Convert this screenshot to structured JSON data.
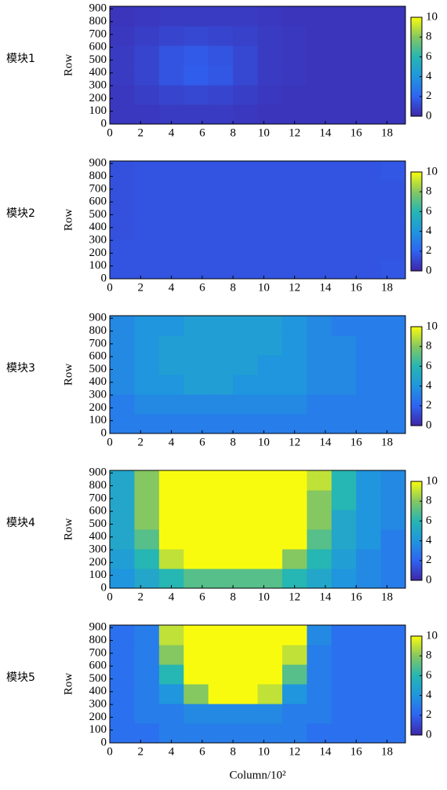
{
  "chart_data": [
    {
      "type": "heatmap",
      "panel_label": "模块1",
      "ylabel": "Row",
      "xlim": [
        0,
        19.2
      ],
      "ylim": [
        0,
        920
      ],
      "xticks": [
        0,
        2,
        4,
        6,
        8,
        10,
        12,
        14,
        16,
        18
      ],
      "yticks": [
        0,
        100,
        200,
        300,
        400,
        500,
        600,
        700,
        800,
        900
      ],
      "clim": [
        0,
        10
      ],
      "colorbar_ticks": [
        0,
        2,
        4,
        6,
        8,
        10
      ],
      "colors": [
        "#3e26a8",
        "#2f63f3",
        "#1f96de",
        "#26b6b3",
        "#85c761",
        "#f9fb0e"
      ],
      "x": [
        0.8,
        2.4,
        4,
        5.6,
        7.2,
        8.8,
        10.4,
        12,
        13.6,
        15.2,
        16.8,
        18.4
      ],
      "y": [
        77,
        230,
        383,
        537,
        690,
        843
      ],
      "z": [
        [
          0.6,
          0.6,
          0.7,
          0.7,
          0.7,
          0.6,
          0.5,
          0.5,
          0.5,
          0.5,
          0.5,
          0.5
        ],
        [
          0.6,
          0.8,
          1,
          1.1,
          1,
          0.8,
          0.6,
          0.5,
          0.5,
          0.5,
          0.5,
          0.5
        ],
        [
          0.7,
          1,
          1.5,
          1.8,
          1.6,
          1.1,
          0.7,
          0.6,
          0.5,
          0.5,
          0.5,
          0.5
        ],
        [
          0.7,
          1,
          1.5,
          1.7,
          1.5,
          1.1,
          0.7,
          0.6,
          0.5,
          0.5,
          0.5,
          0.5
        ],
        [
          0.6,
          0.8,
          1,
          1.1,
          1,
          0.9,
          0.7,
          0.6,
          0.5,
          0.5,
          0.5,
          0.5
        ],
        [
          0.5,
          0.6,
          0.7,
          0.7,
          0.7,
          0.7,
          0.6,
          0.5,
          0.5,
          0.5,
          0.5,
          0.5
        ]
      ]
    },
    {
      "type": "heatmap",
      "panel_label": "模块2",
      "ylabel": "Row",
      "xlim": [
        0,
        19.2
      ],
      "ylim": [
        0,
        920
      ],
      "xticks": [
        0,
        2,
        4,
        6,
        8,
        10,
        12,
        14,
        16,
        18
      ],
      "yticks": [
        0,
        100,
        200,
        300,
        400,
        500,
        600,
        700,
        800,
        900
      ],
      "clim": [
        0,
        10
      ],
      "colorbar_ticks": [
        0,
        2,
        4,
        6,
        8,
        10
      ],
      "colors": [
        "#3e26a8",
        "#2f63f3",
        "#1f96de",
        "#26b6b3",
        "#85c761",
        "#f9fb0e"
      ],
      "x": [
        0.8,
        2.4,
        4,
        5.6,
        7.2,
        8.8,
        10.4,
        12,
        13.6,
        15.2,
        16.8,
        18.4
      ],
      "y": [
        77,
        230,
        383,
        537,
        690,
        843
      ],
      "z": [
        [
          1.5,
          1.5,
          1.5,
          1.5,
          1.5,
          1.5,
          1.5,
          1.5,
          1.5,
          1.5,
          1.5,
          1.6
        ],
        [
          1.5,
          1.5,
          1.5,
          1.5,
          1.5,
          1.5,
          1.5,
          1.5,
          1.5,
          1.5,
          1.5,
          1.5
        ],
        [
          1.4,
          1.5,
          1.5,
          1.5,
          1.5,
          1.5,
          1.5,
          1.5,
          1.5,
          1.5,
          1.5,
          1.5
        ],
        [
          1.4,
          1.5,
          1.5,
          1.5,
          1.5,
          1.5,
          1.5,
          1.5,
          1.5,
          1.5,
          1.5,
          1.5
        ],
        [
          1.4,
          1.5,
          1.5,
          1.5,
          1.5,
          1.5,
          1.5,
          1.5,
          1.5,
          1.5,
          1.5,
          1.5
        ],
        [
          1.4,
          1.5,
          1.5,
          1.5,
          1.5,
          1.5,
          1.5,
          1.5,
          1.5,
          1.5,
          1.5,
          1.6
        ]
      ]
    },
    {
      "type": "heatmap",
      "panel_label": "模块3",
      "ylabel": "Row",
      "xlim": [
        0,
        19.2
      ],
      "ylim": [
        0,
        920
      ],
      "xticks": [
        0,
        2,
        4,
        6,
        8,
        10,
        12,
        14,
        16,
        18
      ],
      "yticks": [
        0,
        100,
        200,
        300,
        400,
        500,
        600,
        700,
        800,
        900
      ],
      "clim": [
        0,
        10
      ],
      "colorbar_ticks": [
        0,
        2,
        4,
        6,
        8,
        10
      ],
      "colors": [
        "#3e26a8",
        "#2f63f3",
        "#1f96de",
        "#26b6b3",
        "#85c761",
        "#f9fb0e"
      ],
      "x": [
        0.8,
        2.4,
        4,
        5.6,
        7.2,
        8.8,
        10.4,
        12,
        13.6,
        15.2,
        16.8,
        18.4
      ],
      "y": [
        77,
        230,
        383,
        537,
        690,
        843
      ],
      "z": [
        [
          3,
          3,
          3,
          3,
          3,
          3,
          3,
          3,
          3,
          3,
          3,
          3
        ],
        [
          3,
          3.5,
          3.5,
          3.5,
          3.5,
          3.5,
          3.5,
          3.5,
          3,
          3,
          3,
          3
        ],
        [
          3.5,
          4,
          4,
          4.5,
          4.5,
          4,
          4,
          4,
          3.5,
          3.5,
          3,
          3
        ],
        [
          3.5,
          4,
          4.5,
          4.5,
          4.5,
          4.5,
          4,
          4,
          3.5,
          3.5,
          3,
          3
        ],
        [
          3.5,
          4,
          4.5,
          4.5,
          4.5,
          4.5,
          4.5,
          4,
          3.5,
          3.5,
          3,
          3
        ],
        [
          3.5,
          4,
          4,
          4.5,
          4.5,
          4.5,
          4.5,
          4,
          3.5,
          3,
          3,
          3
        ]
      ]
    },
    {
      "type": "heatmap",
      "panel_label": "模块4",
      "ylabel": "Row",
      "xlim": [
        0,
        19.2
      ],
      "ylim": [
        0,
        920
      ],
      "xticks": [
        0,
        2,
        4,
        6,
        8,
        10,
        12,
        14,
        16,
        18
      ],
      "yticks": [
        0,
        100,
        200,
        300,
        400,
        500,
        600,
        700,
        800,
        900
      ],
      "clim": [
        0,
        10
      ],
      "colorbar_ticks": [
        0,
        2,
        4,
        6,
        8,
        10
      ],
      "colors": [
        "#3e26a8",
        "#2f63f3",
        "#1f96de",
        "#26b6b3",
        "#85c761",
        "#f9fb0e"
      ],
      "x": [
        0.8,
        2.4,
        4,
        5.6,
        7.2,
        8.8,
        10.4,
        12,
        13.6,
        15.2,
        16.8,
        18.4
      ],
      "y": [
        77,
        230,
        383,
        537,
        690,
        843
      ],
      "z": [
        [
          4,
          5,
          6,
          7,
          7,
          7,
          7,
          6,
          5,
          4,
          3.5,
          3
        ],
        [
          4.5,
          6,
          9,
          10,
          10,
          10,
          10,
          8,
          6,
          4.5,
          3.5,
          3
        ],
        [
          5,
          7,
          10,
          10,
          10,
          10,
          10,
          10,
          7,
          5,
          4,
          3
        ],
        [
          5,
          8,
          10,
          10,
          10,
          10,
          10,
          10,
          8,
          5,
          4,
          3.5
        ],
        [
          5,
          8,
          10,
          10,
          10,
          10,
          10,
          10,
          8,
          6,
          4,
          3.5
        ],
        [
          5,
          8,
          10,
          10,
          10,
          10,
          10,
          10,
          9,
          6,
          4,
          3.5
        ]
      ]
    },
    {
      "type": "heatmap",
      "panel_label": "模块5",
      "ylabel": "Row",
      "xlabel": "Column/10²",
      "xlim": [
        0,
        19.2
      ],
      "ylim": [
        0,
        920
      ],
      "xticks": [
        0,
        2,
        4,
        6,
        8,
        10,
        12,
        14,
        16,
        18
      ],
      "yticks": [
        0,
        100,
        200,
        300,
        400,
        500,
        600,
        700,
        800,
        900
      ],
      "clim": [
        0,
        10
      ],
      "colorbar_ticks": [
        0,
        2,
        4,
        6,
        8,
        10
      ],
      "colors": [
        "#3e26a8",
        "#2f63f3",
        "#1f96de",
        "#26b6b3",
        "#85c761",
        "#f9fb0e"
      ],
      "x": [
        0.8,
        2.4,
        4,
        5.6,
        7.2,
        8.8,
        10.4,
        12,
        13.6,
        15.2,
        16.8,
        18.4
      ],
      "y": [
        77,
        230,
        383,
        537,
        690,
        843
      ],
      "z": [
        [
          2.5,
          2.5,
          3,
          3,
          3,
          3,
          3,
          3,
          2.5,
          2.5,
          2.5,
          2.5
        ],
        [
          2.5,
          3,
          3,
          3.5,
          3.5,
          3.5,
          3.5,
          3,
          3,
          2.5,
          2.5,
          2.5
        ],
        [
          2.5,
          3,
          4,
          8,
          10,
          10,
          9,
          4,
          3,
          2.5,
          2.5,
          2.5
        ],
        [
          2.5,
          3,
          6,
          10,
          10,
          10,
          10,
          7,
          3,
          2.5,
          2.5,
          2.5
        ],
        [
          2.5,
          3,
          8,
          10,
          10,
          10,
          10,
          9,
          3,
          2.5,
          2.5,
          2.5
        ],
        [
          2.5,
          3,
          9,
          10,
          10,
          10,
          10,
          10,
          3.5,
          2.5,
          2.5,
          2.5
        ]
      ]
    }
  ]
}
